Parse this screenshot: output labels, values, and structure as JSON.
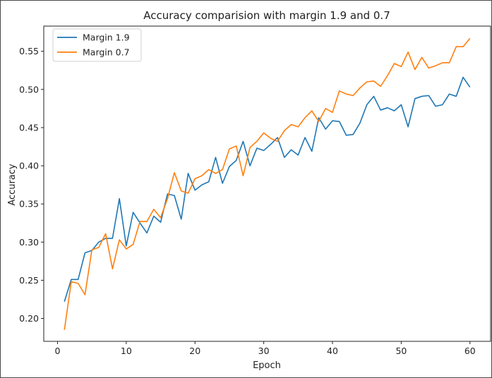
{
  "chart_data": {
    "type": "line",
    "title": "Accuracy comparision with margin 1.9 and 0.7",
    "xlabel": "Epoch",
    "ylabel": "Accuracy",
    "xlim": [
      -2,
      63
    ],
    "ylim": [
      0.17,
      0.583
    ],
    "xticks": [
      0,
      10,
      20,
      30,
      40,
      50,
      60
    ],
    "yticks": [
      0.2,
      0.25,
      0.3,
      0.35,
      0.4,
      0.45,
      0.5,
      0.55
    ],
    "ytick_labels": [
      "0.20",
      "0.25",
      "0.30",
      "0.35",
      "0.40",
      "0.45",
      "0.50",
      "0.55"
    ],
    "grid": false,
    "legend_position": "top-left",
    "x": [
      1,
      2,
      3,
      4,
      5,
      6,
      7,
      8,
      9,
      10,
      11,
      12,
      13,
      14,
      15,
      16,
      17,
      18,
      19,
      20,
      21,
      22,
      23,
      24,
      25,
      26,
      27,
      28,
      29,
      30,
      31,
      32,
      33,
      34,
      35,
      36,
      37,
      38,
      39,
      40,
      41,
      42,
      43,
      44,
      45,
      46,
      47,
      48,
      49,
      50,
      51,
      52,
      53,
      54,
      55,
      56,
      57,
      58,
      59,
      60
    ],
    "series": [
      {
        "name": "Margin 1.9",
        "color": "#1f77b4",
        "values": [
          0.222,
          0.251,
          0.251,
          0.286,
          0.289,
          0.3,
          0.305,
          0.305,
          0.357,
          0.295,
          0.339,
          0.325,
          0.312,
          0.334,
          0.326,
          0.363,
          0.361,
          0.33,
          0.39,
          0.368,
          0.375,
          0.379,
          0.411,
          0.377,
          0.399,
          0.407,
          0.432,
          0.4,
          0.423,
          0.42,
          0.428,
          0.437,
          0.411,
          0.421,
          0.414,
          0.437,
          0.419,
          0.463,
          0.448,
          0.459,
          0.458,
          0.44,
          0.441,
          0.456,
          0.48,
          0.491,
          0.473,
          0.476,
          0.472,
          0.48,
          0.451,
          0.488,
          0.491,
          0.492,
          0.478,
          0.48,
          0.494,
          0.491,
          0.516,
          0.503
        ]
      },
      {
        "name": "Margin 0.7",
        "color": "#ff7f0e",
        "values": [
          0.185,
          0.248,
          0.246,
          0.231,
          0.29,
          0.293,
          0.311,
          0.265,
          0.303,
          0.291,
          0.297,
          0.327,
          0.327,
          0.343,
          0.332,
          0.357,
          0.391,
          0.367,
          0.364,
          0.383,
          0.387,
          0.395,
          0.39,
          0.395,
          0.422,
          0.426,
          0.387,
          0.424,
          0.432,
          0.443,
          0.436,
          0.432,
          0.446,
          0.454,
          0.451,
          0.463,
          0.472,
          0.458,
          0.475,
          0.47,
          0.498,
          0.494,
          0.492,
          0.502,
          0.51,
          0.511,
          0.504,
          0.518,
          0.534,
          0.53,
          0.549,
          0.526,
          0.542,
          0.528,
          0.531,
          0.535,
          0.535,
          0.556,
          0.556,
          0.567
        ]
      }
    ]
  }
}
